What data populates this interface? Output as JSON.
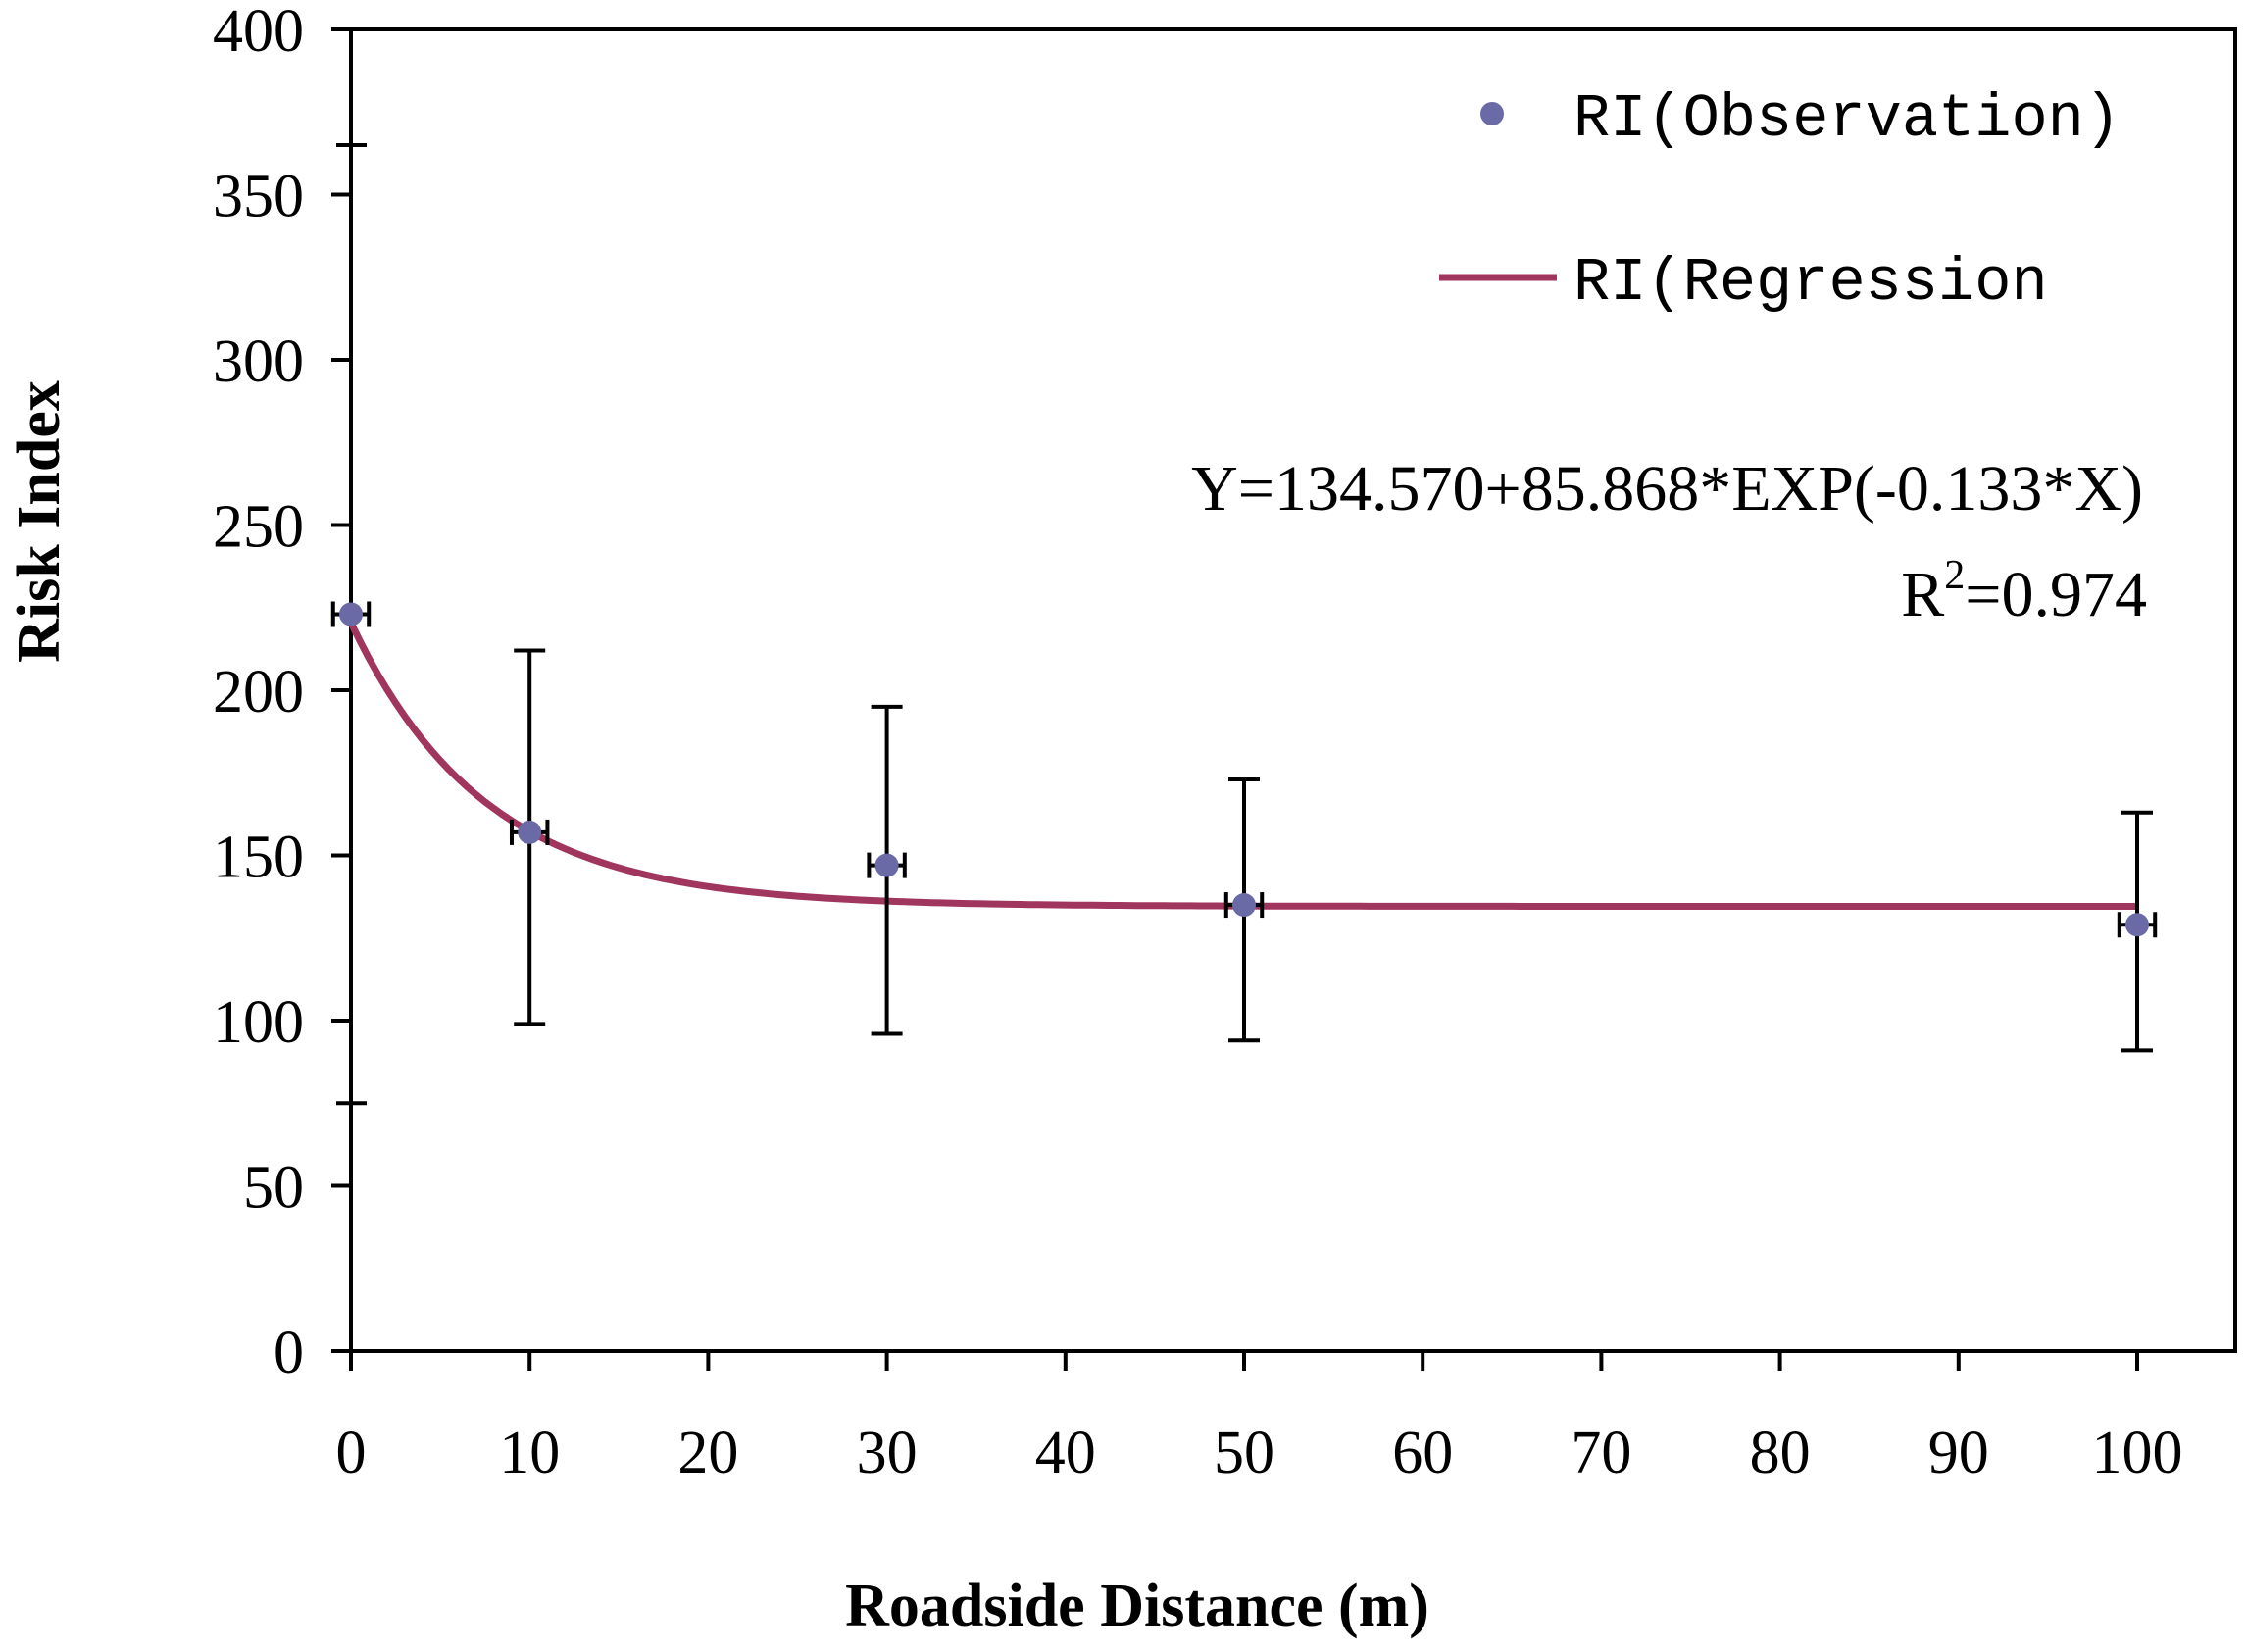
{
  "chart_data": {
    "type": "scatter",
    "title": "",
    "xlabel": "Roadside Distance (m)",
    "ylabel": "Risk Index",
    "xlim": [
      0,
      100
    ],
    "ylim": [
      0,
      400
    ],
    "xticks": [
      0,
      10,
      20,
      30,
      40,
      50,
      60,
      70,
      80,
      90,
      100
    ],
    "yticks": [
      0,
      50,
      100,
      150,
      200,
      250,
      300,
      350,
      400
    ],
    "grid": false,
    "legend_position": "top-right",
    "series": [
      {
        "name": "RI(Observation)",
        "kind": "scatter",
        "color": "#6a6aa6",
        "points": [
          {
            "x": 0,
            "y": 223,
            "y_low": 223,
            "y_high": 223,
            "x_err": 1
          },
          {
            "x": 10,
            "y": 157,
            "y_low": 99,
            "y_high": 212,
            "x_err": 1
          },
          {
            "x": 30,
            "y": 147,
            "y_low": 96,
            "y_high": 195,
            "x_err": 1
          },
          {
            "x": 50,
            "y": 135,
            "y_low": 94,
            "y_high": 173,
            "x_err": 1
          },
          {
            "x": 100,
            "y": 129,
            "y_low": 91,
            "y_high": 163,
            "x_err": 1
          }
        ]
      },
      {
        "name": "RI(Regression",
        "kind": "line",
        "color": "#a0365e",
        "model": {
          "a": 134.57,
          "b": 85.868,
          "c": -0.133
        }
      }
    ],
    "annotations": {
      "equation": "Y=134.570+85.868*EXP(-0.133*X)",
      "r2_prefix": "R",
      "r2_exponent": "2",
      "r2_value": "=0.974"
    }
  }
}
